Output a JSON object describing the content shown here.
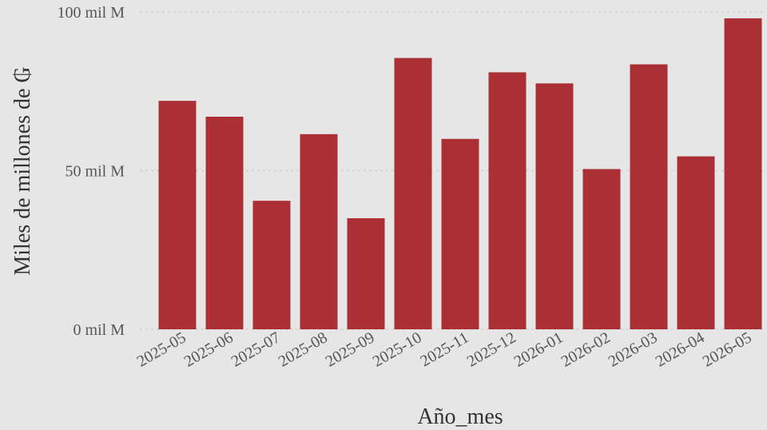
{
  "chart_data": {
    "type": "bar",
    "categories": [
      "2025-05",
      "2025-06",
      "2025-07",
      "2025-08",
      "2025-09",
      "2025-10",
      "2025-11",
      "2025-12",
      "2026-01",
      "2026-02",
      "2026-03",
      "2026-04",
      "2026-05"
    ],
    "values": [
      72,
      67,
      40.5,
      61.5,
      35,
      85.5,
      60,
      81,
      77.5,
      50.5,
      83.5,
      54.5,
      98
    ],
    "xlabel": "Año_mes",
    "ylabel": "Miles de millones de ₲",
    "ylim": [
      0,
      100
    ],
    "yticks": [
      {
        "value": 0,
        "label": "0 mil M"
      },
      {
        "value": 50,
        "label": "50 mil M"
      },
      {
        "value": 100,
        "label": "100 mil M"
      }
    ],
    "grid": true,
    "legend": "none"
  },
  "colors": {
    "background": "#e6e6e6",
    "bar": "#ab3036",
    "grid": "#c8c8c8",
    "tick_text": "#555555",
    "title_text": "#333333"
  }
}
